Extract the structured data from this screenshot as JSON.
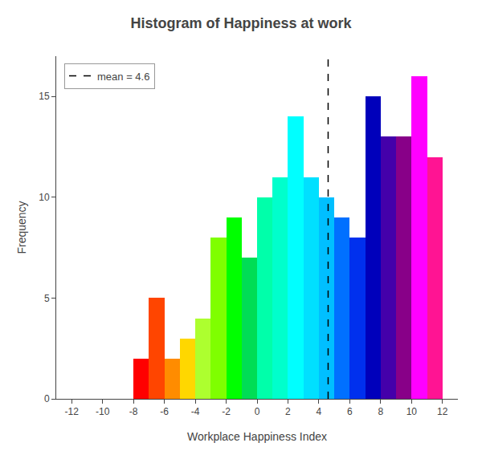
{
  "chart_data": {
    "type": "histogram",
    "title": "Histogram of Happiness at work",
    "xlabel": "Workplace Happiness Index",
    "ylabel": "Frequency",
    "bins": [
      -8,
      -7,
      -6,
      -5,
      -4,
      -3,
      -2,
      -1,
      0,
      1,
      2,
      3,
      4,
      5,
      6,
      7,
      8,
      9,
      10,
      11,
      12
    ],
    "values": [
      2,
      5,
      2,
      3,
      4,
      8,
      9,
      7,
      10,
      11,
      14,
      11,
      10,
      9,
      8,
      15,
      13,
      13,
      16,
      12
    ],
    "colors": [
      "#FF0000",
      "#FF4500",
      "#FF8C00",
      "#FFD700",
      "#ADFF2F",
      "#7FFF00",
      "#00FF00",
      "#00DD55",
      "#00FFAA",
      "#00FFCC",
      "#00FFFF",
      "#00E0FF",
      "#00BFFF",
      "#0070FF",
      "#0030EE",
      "#0000BB",
      "#4400AA",
      "#880088",
      "#FF00FF",
      "#FF1493"
    ],
    "lines": [
      {
        "x": 4.6,
        "name": "mean = 4.6",
        "color": "#000000",
        "line_style": "dashed"
      }
    ],
    "xlim": [
      -13,
      13
    ],
    "ylim": [
      0,
      17
    ],
    "xticks": [
      -12,
      -10,
      -8,
      -6,
      -4,
      -2,
      0,
      2,
      4,
      6,
      8,
      10,
      12
    ],
    "yticks": [
      0,
      5,
      10,
      15
    ],
    "grid": false,
    "legend": "upper left"
  }
}
